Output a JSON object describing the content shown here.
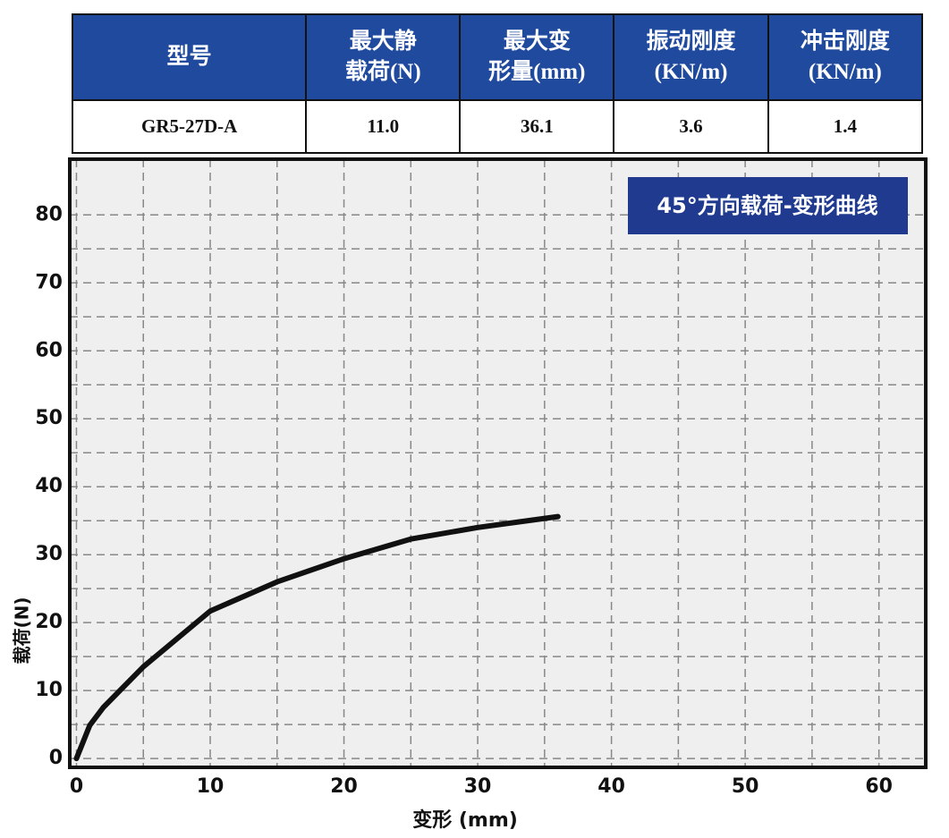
{
  "table": {
    "header": [
      [
        "型号"
      ],
      [
        "最大静",
        "载荷(N)"
      ],
      [
        "最大变",
        "形量(mm)"
      ],
      [
        "振动刚度",
        "(KN/m)"
      ],
      [
        "冲击刚度",
        "(KN/m)"
      ]
    ],
    "rows": [
      [
        "GR5-27D-A",
        "11.0",
        "36.1",
        "3.6",
        "1.4"
      ]
    ]
  },
  "chart_data": {
    "type": "line",
    "title": "45°方向载荷-变形曲线",
    "x_label": "变形 (mm)",
    "y_label": "载荷(N)",
    "x": [
      0,
      1,
      2,
      5,
      10,
      15,
      20,
      25,
      30,
      36
    ],
    "series": [
      {
        "name": "载荷",
        "color": "#111111",
        "values": [
          0,
          4.9,
          7.5,
          13.5,
          21.7,
          26,
          29.4,
          32.3,
          34,
          35.6
        ]
      }
    ],
    "xlim": [
      -0.5,
      63.5
    ],
    "ylim": [
      -1.3,
      88.2
    ],
    "xticks": [
      0,
      10,
      20,
      30,
      40,
      50,
      60
    ],
    "yticks": [
      0,
      10,
      20,
      30,
      40,
      50,
      60,
      70,
      80
    ],
    "grid": true
  }
}
